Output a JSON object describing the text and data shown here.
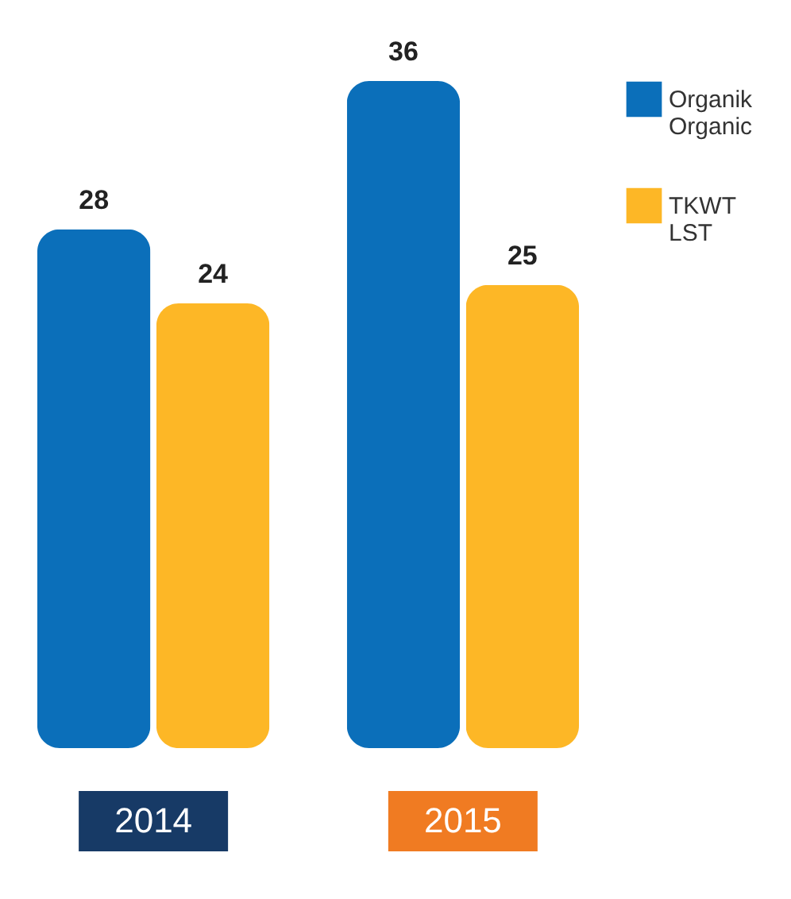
{
  "chart_data": {
    "type": "bar",
    "categories": [
      "2014",
      "2015"
    ],
    "data_labels": true,
    "legend": "right",
    "series": [
      {
        "name": "Organik Organic",
        "color": "#0b6fba",
        "values": [
          28,
          36
        ]
      },
      {
        "name": "TKWT LST",
        "color": "#fdb726",
        "values": [
          24,
          25
        ]
      }
    ]
  }
}
